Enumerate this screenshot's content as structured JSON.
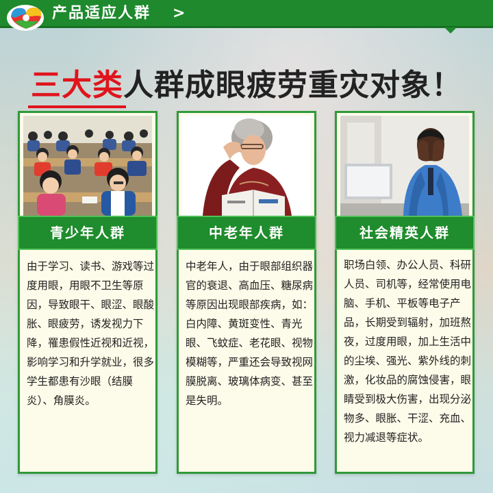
{
  "header": {
    "title": "产品适应人群",
    "arrow": ">"
  },
  "headline": {
    "emphasis": "三大类",
    "rest": "人群成眼疲劳重灾对象！"
  },
  "cards": [
    {
      "title": "青少年人群",
      "body": "由于学习、读书、游戏等过度用眼，用眼不卫生等原因，导致眼干、眼涩、眼酸胀、眼疲劳，诱发视力下降，罹患假性近视和近视，影响学习和升学就业，很多学生都患有沙眼（结膜炎）、角膜炎。"
    },
    {
      "title": "中老年人群",
      "body": "中老年人，由于眼部组织器官的衰退、高血压、糖尿病等原因出现眼部疾病，如：白内障、黄斑变性、青光眼、飞蚊症、老花眼、视物模糊等，严重还会导致视网膜脱离、玻璃体病变、甚至是失明。"
    },
    {
      "title": "社会精英人群",
      "body": "职场白领、办公人员、科研人员、司机等，经常使用电脑、手机、平板等电子产品，长期受到辐射，加班熬夜，过度用眼，加上生活中的尘埃、强光、紫外线的刺激，化妆品的腐蚀侵害，眼睛受到极大伤害，出现分泌物多、眼胀、干涩、充血、视力减退等症状。"
    }
  ],
  "colors": {
    "accent_green": "#1e8a2d",
    "headline_red": "#e0141c"
  }
}
